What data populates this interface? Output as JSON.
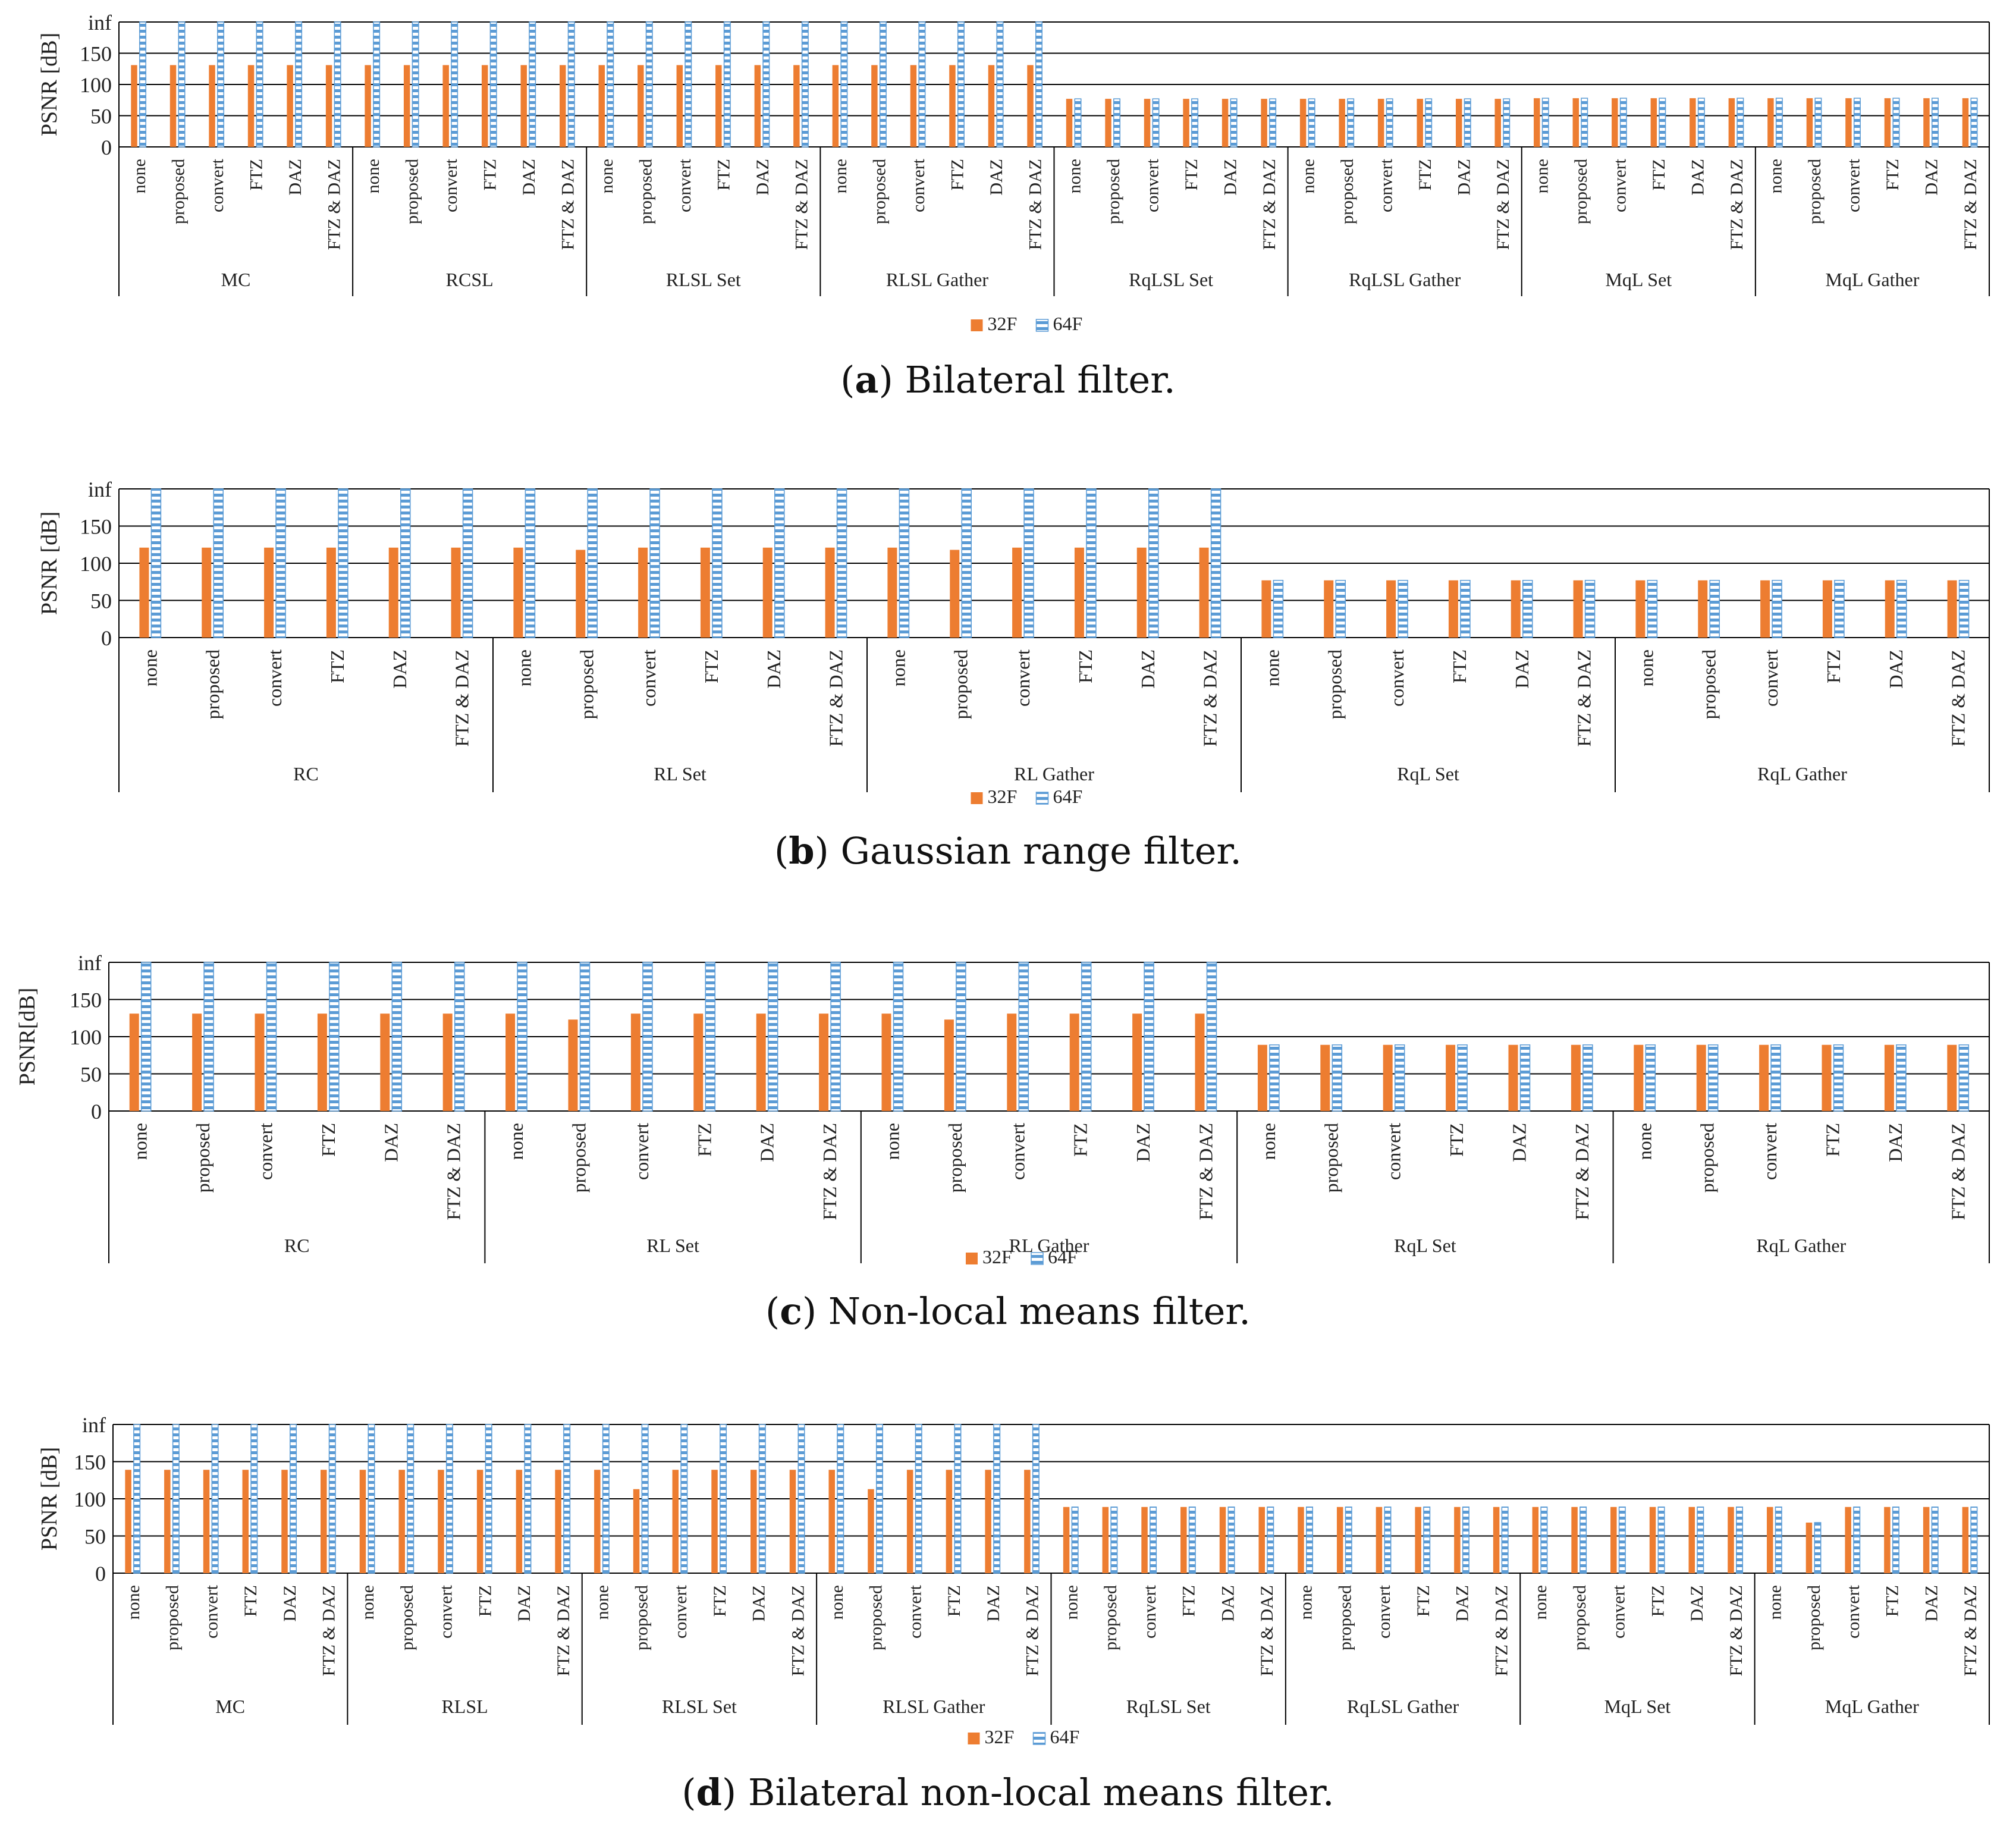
{
  "colors": {
    "f32": "#ED7D31",
    "f64_fill": "#FFFFFF",
    "f64_stripe": "#5B9BD5",
    "axis": "#000000"
  },
  "legend": {
    "labels": [
      "32F",
      "64F"
    ]
  },
  "y_tick_labels": [
    "0",
    "50",
    "100",
    "150",
    "inf"
  ],
  "chart_data": [
    {
      "type": "bar",
      "title": "(a) Bilateral filter.",
      "caption_letter": "a",
      "caption_text": "Bilateral filter.",
      "ylabel": "PSNR [dB]",
      "ylim": [
        0,
        200
      ],
      "ytick_values": [
        0,
        50,
        100,
        150,
        200
      ],
      "inf_value": 200,
      "groups": [
        "MC",
        "RCSL",
        "RLSL Set",
        "RLSL Gather",
        "RqLSL Set",
        "RqLSL Gather",
        "MqL Set",
        "MqL Gather"
      ],
      "subcategories": [
        "none",
        "proposed",
        "convert",
        "FTZ",
        "DAZ",
        "FTZ & DAZ"
      ],
      "series": [
        {
          "name": "32F",
          "values": [
            [
              131,
              131,
              131,
              131,
              131,
              131
            ],
            [
              131,
              131,
              131,
              131,
              131,
              131
            ],
            [
              131,
              131,
              131,
              131,
              131,
              131
            ],
            [
              131,
              131,
              131,
              131,
              131,
              131
            ],
            [
              77,
              77,
              77,
              77,
              77,
              77
            ],
            [
              77,
              77,
              77,
              77,
              77,
              77
            ],
            [
              78,
              78,
              78,
              78,
              78,
              78
            ],
            [
              78,
              78,
              78,
              78,
              78,
              78
            ]
          ]
        },
        {
          "name": "64F",
          "values": [
            [
              "inf",
              "inf",
              "inf",
              "inf",
              "inf",
              "inf"
            ],
            [
              "inf",
              "inf",
              "inf",
              "inf",
              "inf",
              "inf"
            ],
            [
              "inf",
              "inf",
              "inf",
              "inf",
              "inf",
              "inf"
            ],
            [
              "inf",
              "inf",
              "inf",
              "inf",
              "inf",
              "inf"
            ],
            [
              77,
              77,
              77,
              77,
              77,
              77
            ],
            [
              77,
              77,
              77,
              77,
              77,
              77
            ],
            [
              78,
              78,
              78,
              78,
              78,
              78
            ],
            [
              78,
              78,
              78,
              78,
              78,
              78
            ]
          ]
        }
      ]
    },
    {
      "type": "bar",
      "title": "(b) Gaussian range filter.",
      "caption_letter": "b",
      "caption_text": "Gaussian range filter.",
      "ylabel": "PSNR [dB]",
      "ylim": [
        0,
        200
      ],
      "ytick_values": [
        0,
        50,
        100,
        150,
        200
      ],
      "inf_value": 200,
      "groups": [
        "RC",
        "RL Set",
        "RL Gather",
        "RqL Set",
        "RqL Gather"
      ],
      "subcategories": [
        "none",
        "proposed",
        "convert",
        "FTZ",
        "DAZ",
        "FTZ & DAZ"
      ],
      "series": [
        {
          "name": "32F",
          "values": [
            [
              121,
              121,
              121,
              121,
              121,
              121
            ],
            [
              121,
              118,
              121,
              121,
              121,
              121
            ],
            [
              121,
              118,
              121,
              121,
              121,
              121
            ],
            [
              77,
              77,
              77,
              77,
              77,
              77
            ],
            [
              77,
              77,
              77,
              77,
              77,
              77
            ]
          ]
        },
        {
          "name": "64F",
          "values": [
            [
              "inf",
              "inf",
              "inf",
              "inf",
              "inf",
              "inf"
            ],
            [
              "inf",
              "inf",
              "inf",
              "inf",
              "inf",
              "inf"
            ],
            [
              "inf",
              "inf",
              "inf",
              "inf",
              "inf",
              "inf"
            ],
            [
              77,
              77,
              77,
              77,
              77,
              77
            ],
            [
              77,
              77,
              77,
              77,
              77,
              77
            ]
          ]
        }
      ]
    },
    {
      "type": "bar",
      "title": "(c) Non-local means filter.",
      "caption_letter": "c",
      "caption_text": "Non-local means filter.",
      "ylabel": "PSNR[dB]",
      "ylim": [
        0,
        200
      ],
      "ytick_values": [
        0,
        50,
        100,
        150,
        200
      ],
      "inf_value": 200,
      "groups": [
        "RC",
        "RL Set",
        "RL Gather",
        "RqL Set",
        "RqL Gather"
      ],
      "subcategories": [
        "none",
        "proposed",
        "convert",
        "FTZ",
        "DAZ",
        "FTZ & DAZ"
      ],
      "series": [
        {
          "name": "32F",
          "values": [
            [
              131,
              131,
              131,
              131,
              131,
              131
            ],
            [
              131,
              123,
              131,
              131,
              131,
              131
            ],
            [
              131,
              123,
              131,
              131,
              131,
              131
            ],
            [
              89,
              89,
              89,
              89,
              89,
              89
            ],
            [
              89,
              89,
              89,
              89,
              89,
              89
            ]
          ]
        },
        {
          "name": "64F",
          "values": [
            [
              "inf",
              "inf",
              "inf",
              "inf",
              "inf",
              "inf"
            ],
            [
              "inf",
              "inf",
              "inf",
              "inf",
              "inf",
              "inf"
            ],
            [
              "inf",
              "inf",
              "inf",
              "inf",
              "inf",
              "inf"
            ],
            [
              89,
              89,
              89,
              89,
              89,
              89
            ],
            [
              89,
              89,
              89,
              89,
              89,
              89
            ]
          ]
        }
      ]
    },
    {
      "type": "bar",
      "title": "(d) Bilateral non-local means filter.",
      "caption_letter": "d",
      "caption_text": "Bilateral non-local means filter.",
      "ylabel": "PSNR [dB]",
      "ylim": [
        0,
        200
      ],
      "ytick_values": [
        0,
        50,
        100,
        150,
        200
      ],
      "inf_value": 200,
      "groups": [
        "MC",
        "RLSL",
        "RLSL Set",
        "RLSL Gather",
        "RqLSL Set",
        "RqLSL Gather",
        "MqL Set",
        "MqL Gather"
      ],
      "subcategories": [
        "none",
        "proposed",
        "convert",
        "FTZ",
        "DAZ",
        "FTZ & DAZ"
      ],
      "series": [
        {
          "name": "32F",
          "values": [
            [
              139,
              139,
              139,
              139,
              139,
              139
            ],
            [
              139,
              139,
              139,
              139,
              139,
              139
            ],
            [
              139,
              113,
              139,
              139,
              139,
              139
            ],
            [
              139,
              113,
              139,
              139,
              139,
              139
            ],
            [
              89,
              89,
              89,
              89,
              89,
              89
            ],
            [
              89,
              89,
              89,
              89,
              89,
              89
            ],
            [
              89,
              89,
              89,
              89,
              89,
              89
            ],
            [
              89,
              68,
              89,
              89,
              89,
              89
            ]
          ]
        },
        {
          "name": "64F",
          "values": [
            [
              "inf",
              "inf",
              "inf",
              "inf",
              "inf",
              "inf"
            ],
            [
              "inf",
              "inf",
              "inf",
              "inf",
              "inf",
              "inf"
            ],
            [
              "inf",
              "inf",
              "inf",
              "inf",
              "inf",
              "inf"
            ],
            [
              "inf",
              "inf",
              "inf",
              "inf",
              "inf",
              "inf"
            ],
            [
              89,
              89,
              89,
              89,
              89,
              89
            ],
            [
              89,
              89,
              89,
              89,
              89,
              89
            ],
            [
              89,
              89,
              89,
              89,
              89,
              89
            ],
            [
              89,
              68,
              89,
              89,
              89,
              89
            ]
          ]
        }
      ]
    }
  ]
}
